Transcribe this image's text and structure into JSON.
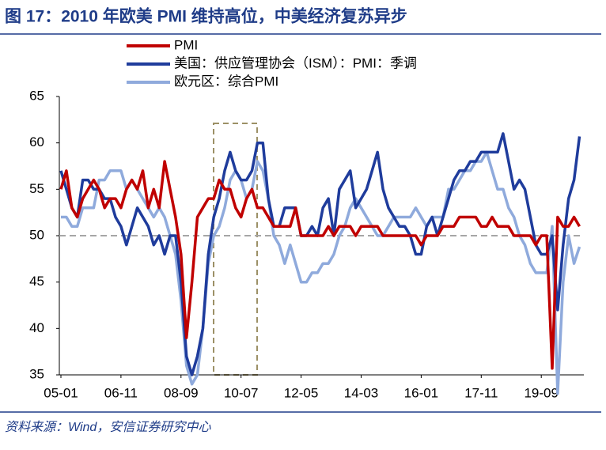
{
  "chart_data": {
    "type": "line",
    "title": "图 17：2010 年欧美 PMI 维持高位，中美经济复苏异步",
    "source": "资料来源：Wind，安信证券研究中心",
    "categories": [
      "05-01",
      null,
      null,
      null,
      null,
      null,
      null,
      null,
      null,
      null,
      null,
      "06-11",
      null,
      null,
      null,
      null,
      null,
      null,
      null,
      null,
      null,
      null,
      "08-09",
      null,
      null,
      null,
      null,
      null,
      null,
      null,
      null,
      null,
      null,
      "10-07",
      null,
      null,
      null,
      null,
      null,
      null,
      null,
      null,
      null,
      null,
      "12-05",
      null,
      null,
      null,
      null,
      null,
      null,
      null,
      null,
      null,
      null,
      "14-03",
      null,
      null,
      null,
      null,
      null,
      null,
      null,
      null,
      null,
      null,
      "16-01",
      null,
      null,
      null,
      null,
      null,
      null,
      null,
      null,
      null,
      null,
      "17-11",
      null,
      null,
      null,
      null,
      null,
      null,
      null,
      null,
      null,
      null,
      "19-09",
      null,
      null,
      null,
      null,
      null,
      null,
      null
    ],
    "series": [
      {
        "name": "PMI",
        "color": "#c00000",
        "values": [
          55,
          57,
          53,
          52,
          54,
          55,
          56,
          55,
          53,
          54,
          54,
          53,
          55,
          56,
          55,
          57,
          53,
          55,
          53,
          58,
          55,
          52,
          48,
          39,
          45,
          52,
          53,
          54,
          54,
          56,
          55,
          55,
          53,
          52,
          54,
          55,
          53,
          53,
          52,
          51,
          51,
          51,
          51,
          53,
          50,
          50,
          50,
          50,
          50,
          51,
          50,
          51,
          51,
          51,
          50,
          51,
          51,
          51,
          51,
          50,
          50,
          50,
          50,
          50,
          50,
          50,
          49,
          50,
          50,
          50,
          51,
          51,
          51,
          52,
          52,
          52,
          52,
          51,
          51,
          52,
          51,
          51,
          51,
          50,
          50,
          50,
          50,
          49,
          50,
          50,
          35.7,
          52,
          51,
          51,
          52,
          51
        ]
      },
      {
        "name": "美国：供应管理协会（ISM）：PMI：季调",
        "color": "#1f3c9c",
        "values": [
          57,
          55,
          53,
          52,
          56,
          56,
          55,
          55,
          54,
          54,
          52,
          51,
          49,
          51,
          53,
          52,
          51,
          49,
          50,
          48,
          50,
          50,
          45,
          37,
          35,
          37,
          40,
          48,
          52,
          54,
          57,
          59,
          57,
          56,
          56,
          57,
          60,
          60,
          54,
          51,
          51,
          53,
          53,
          53,
          50,
          50,
          51,
          50,
          53,
          54,
          50,
          55,
          56,
          57,
          53,
          54,
          55,
          57,
          59,
          55,
          53,
          52,
          51,
          51,
          50,
          48,
          48,
          51,
          52,
          50,
          52,
          54,
          56,
          57,
          57,
          58,
          58,
          59,
          59,
          59,
          59,
          61,
          58,
          55,
          56,
          55,
          52,
          49,
          48,
          48,
          50,
          42,
          49,
          54,
          56,
          60.7
        ]
      },
      {
        "name": "欧元区：综合PMI",
        "color": "#8faadc",
        "values": [
          52,
          52,
          51,
          51,
          53,
          53,
          53,
          56,
          56,
          57,
          57,
          57,
          55,
          56,
          55,
          54,
          53,
          52,
          53,
          52,
          50,
          48,
          43,
          36,
          34,
          35,
          40,
          47,
          50,
          51,
          53,
          56,
          57,
          56,
          54,
          55,
          58,
          57,
          54,
          50,
          49,
          47,
          49,
          47,
          45,
          45,
          46,
          46,
          47,
          47,
          48,
          50,
          51,
          53,
          54,
          53,
          52,
          51,
          50,
          50,
          51,
          52,
          52,
          52,
          52,
          53,
          52,
          51,
          52,
          52,
          52,
          55,
          55,
          56,
          57,
          57,
          58,
          58,
          59,
          57,
          55,
          55,
          53,
          52,
          50,
          49,
          47,
          46,
          46,
          46,
          51,
          33,
          45,
          50,
          47,
          48.8
        ]
      }
    ],
    "ylim": [
      35,
      65
    ],
    "yticks": [
      35,
      40,
      45,
      50,
      55,
      60,
      65
    ],
    "reference_line": 50
  }
}
